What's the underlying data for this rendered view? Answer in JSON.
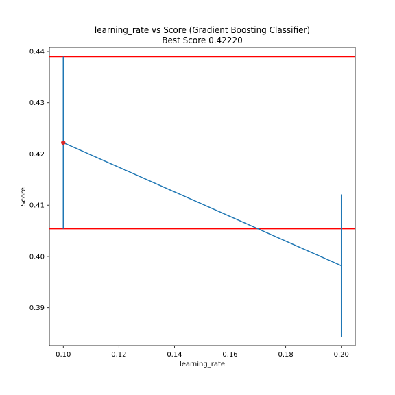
{
  "chart_data": {
    "type": "line",
    "title": "learning_rate vs Score (Gradient Boosting Classifier)",
    "subtitle": "Best Score 0.42220",
    "xlabel": "learning_rate",
    "ylabel": "Score",
    "xlim": [
      0.095,
      0.205
    ],
    "ylim": [
      0.3826,
      0.4408
    ],
    "xticks": [
      0.1,
      0.12,
      0.14,
      0.16,
      0.18,
      0.2
    ],
    "xtick_labels": [
      "0.10",
      "0.12",
      "0.14",
      "0.16",
      "0.18",
      "0.20"
    ],
    "yticks": [
      0.39,
      0.4,
      0.41,
      0.42,
      0.43,
      0.44
    ],
    "ytick_labels": [
      "0.39",
      "0.40",
      "0.41",
      "0.42",
      "0.43",
      "0.44"
    ],
    "grid": false,
    "series": [
      {
        "x": [
          0.1,
          0.2
        ],
        "y": [
          0.4222,
          0.3982
        ],
        "yerr_low": [
          0.4054,
          0.3843
        ],
        "yerr_high": [
          0.439,
          0.4121
        ],
        "color": "#1f77b4"
      }
    ],
    "best_point": {
      "x": 0.1,
      "y": 0.4222,
      "color": "#d62728"
    },
    "hlines": [
      {
        "y": 0.439,
        "color": "#ff0000"
      },
      {
        "y": 0.4054,
        "color": "#ff0000"
      }
    ]
  }
}
